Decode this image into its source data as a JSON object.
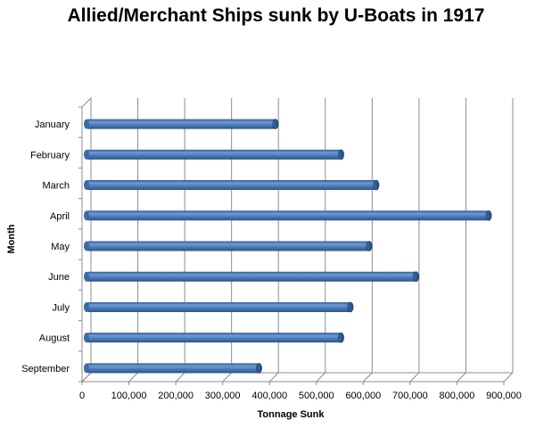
{
  "chart_data": {
    "type": "bar",
    "orientation": "horizontal",
    "title": "Allied/Merchant Ships sunk by U-Boats in 1917",
    "xlabel": "Tonnage  Sunk",
    "ylabel": "Month",
    "categories": [
      "January",
      "February",
      "March",
      "April",
      "May",
      "June",
      "July",
      "August",
      "September"
    ],
    "values": [
      405000,
      545000,
      620000,
      860000,
      605000,
      705000,
      565000,
      545000,
      370000
    ],
    "xlim": [
      0,
      900000
    ],
    "xticks": [
      0,
      100000,
      200000,
      300000,
      400000,
      500000,
      600000,
      700000,
      800000,
      900000
    ],
    "xtick_labels": [
      "0",
      "100,000",
      "200,000",
      "300,000",
      "400,000",
      "500,000",
      "600,000",
      "700,000",
      "800,000",
      "900,000"
    ],
    "grid": true,
    "bar_color": "#4f81bd"
  }
}
